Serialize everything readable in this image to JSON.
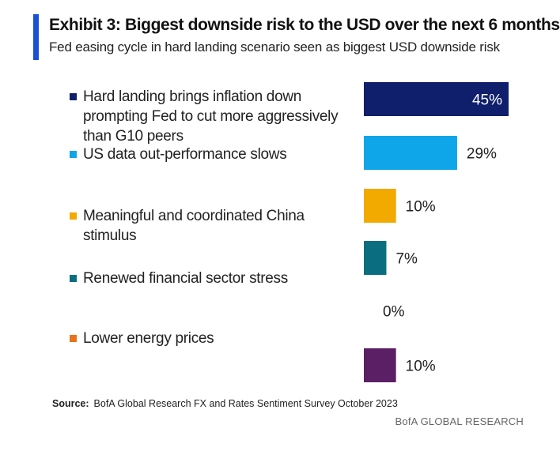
{
  "header": {
    "title": "Exhibit 3: Biggest downside risk to the USD over the next 6 months",
    "subtitle": "Fed easing cycle in hard landing scenario seen as biggest USD downside risk"
  },
  "chart_data": {
    "type": "bar",
    "orientation": "horizontal",
    "title": "Exhibit 3: Biggest downside risk to the USD over the next 6 months",
    "subtitle": "Fed easing cycle in hard landing scenario seen as biggest USD downside risk",
    "value_format": "percent",
    "xlim": [
      0,
      45
    ],
    "grid": false,
    "legend_position": "left",
    "categories": [
      "Hard landing brings inflation down prompting Fed to cut more aggressively than G10 peers",
      "US data out-performance slows",
      "Meaningful and coordinated China stimulus",
      "Renewed financial sector stress",
      "Lower energy prices",
      ""
    ],
    "values": [
      45,
      29,
      10,
      7,
      0,
      10
    ],
    "data_labels": [
      "45%",
      "29%",
      "10%",
      "7%",
      "0%",
      "10%"
    ],
    "colors": [
      "#0f1f6b",
      "#0ea5e9",
      "#f2a900",
      "#0b6e80",
      "#e8731a",
      "#5b1f66"
    ],
    "label_colors": [
      "#ffffff",
      "#222222",
      "#222222",
      "#222222",
      "#222222",
      "#222222"
    ]
  },
  "legend": [
    {
      "label": "Hard landing brings inflation down prompting Fed to cut more aggressively than G10 peers",
      "color": "#0f1f6b"
    },
    {
      "label": "US data out-performance slows",
      "color": "#0ea5e9"
    },
    {
      "label": "Meaningful and coordinated China stimulus",
      "color": "#f2a900"
    },
    {
      "label": "Renewed financial sector stress",
      "color": "#0b6e80"
    },
    {
      "label": "Lower energy prices",
      "color": "#e8731a"
    }
  ],
  "footer": {
    "source_label": "Source:",
    "source_text": "BofA Global Research FX and Rates Sentiment Survey October 2023",
    "brand": "BofA GLOBAL RESEARCH"
  }
}
